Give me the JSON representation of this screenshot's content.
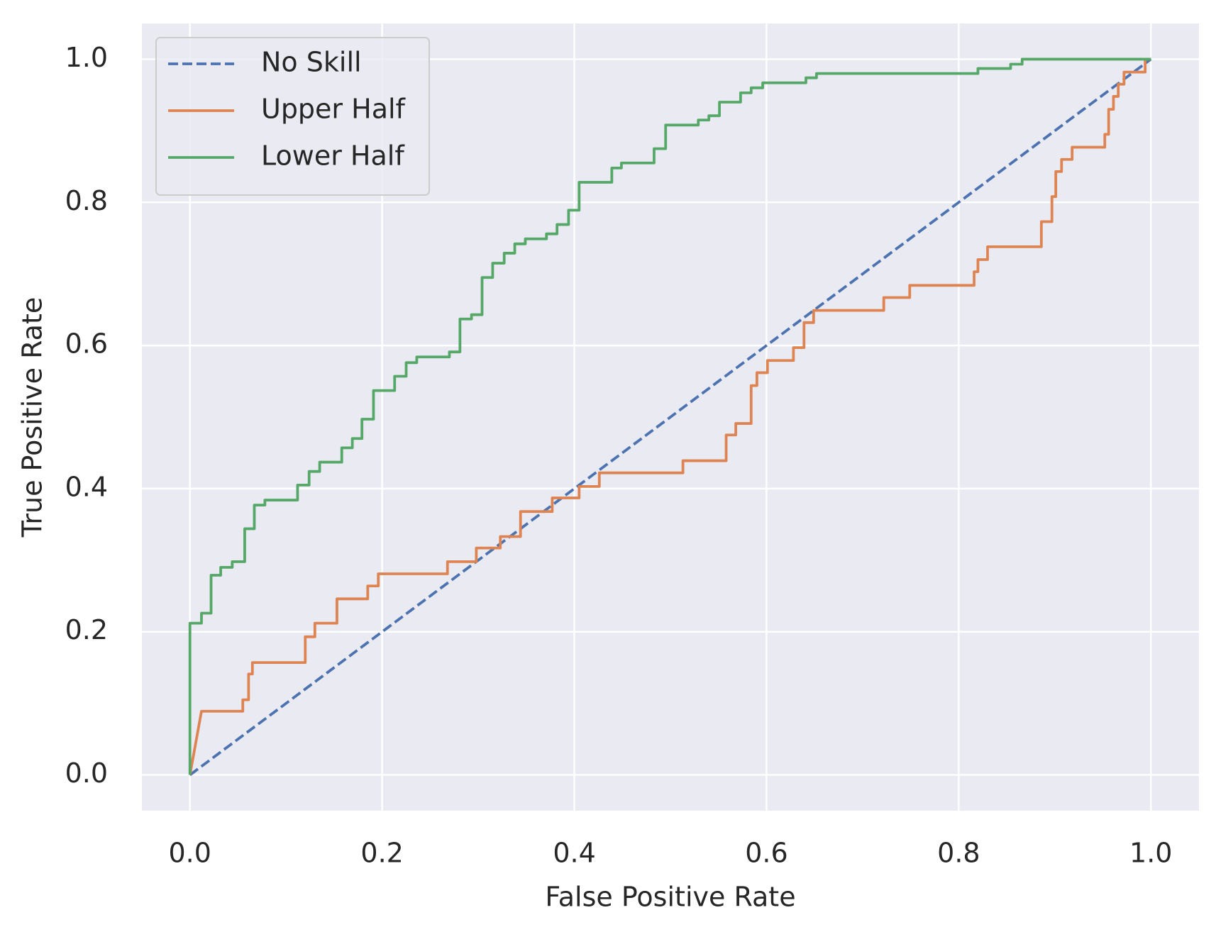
{
  "chart_data": {
    "type": "line",
    "xlabel": "False Positive Rate",
    "ylabel": "True Positive Rate",
    "xlim": [
      -0.05,
      1.05
    ],
    "ylim": [
      -0.05,
      1.05
    ],
    "xticks": [
      {
        "value": 0,
        "label": "0.0"
      },
      0.2,
      0.4,
      0.6,
      0.8,
      {
        "value": 1,
        "label": "1.0"
      }
    ],
    "yticks": [
      {
        "value": 0,
        "label": "0.0"
      },
      0.2,
      0.4,
      0.6,
      0.8,
      {
        "value": 1,
        "label": "1.0"
      }
    ],
    "grid": true,
    "legend": "upper-left",
    "background": "#eaeaf2",
    "series": [
      {
        "name": "No Skill",
        "color": "#4c72b0",
        "linestyle": "dashed",
        "x": [
          0,
          1
        ],
        "values": [
          0,
          1
        ]
      },
      {
        "name": "Upper Half",
        "color": "#dd8452",
        "linestyle": "solid",
        "x": [
          0,
          0.012,
          0.055,
          0.055,
          0.061,
          0.061,
          0.065,
          0.065,
          0.12,
          0.12,
          0.13,
          0.13,
          0.153,
          0.153,
          0.185,
          0.185,
          0.196,
          0.196,
          0.268,
          0.268,
          0.298,
          0.298,
          0.323,
          0.323,
          0.344,
          0.344,
          0.377,
          0.377,
          0.405,
          0.405,
          0.426,
          0.426,
          0.513,
          0.513,
          0.558,
          0.558,
          0.568,
          0.568,
          0.584,
          0.584,
          0.59,
          0.59,
          0.601,
          0.601,
          0.628,
          0.628,
          0.639,
          0.639,
          0.649,
          0.649,
          0.722,
          0.722,
          0.749,
          0.749,
          0.816,
          0.816,
          0.82,
          0.82,
          0.83,
          0.83,
          0.886,
          0.886,
          0.897,
          0.897,
          0.901,
          0.901,
          0.907,
          0.907,
          0.918,
          0.918,
          0.952,
          0.952,
          0.956,
          0.956,
          0.961,
          0.961,
          0.966,
          0.966,
          0.972,
          0.972,
          0.994,
          0.994,
          1.0
        ],
        "values": [
          0,
          0.089,
          0.089,
          0.105,
          0.105,
          0.141,
          0.141,
          0.157,
          0.157,
          0.193,
          0.193,
          0.212,
          0.212,
          0.246,
          0.246,
          0.264,
          0.264,
          0.281,
          0.281,
          0.298,
          0.298,
          0.317,
          0.317,
          0.333,
          0.333,
          0.368,
          0.368,
          0.387,
          0.387,
          0.403,
          0.403,
          0.422,
          0.422,
          0.439,
          0.439,
          0.475,
          0.475,
          0.491,
          0.491,
          0.544,
          0.544,
          0.562,
          0.562,
          0.579,
          0.579,
          0.597,
          0.597,
          0.632,
          0.632,
          0.649,
          0.649,
          0.667,
          0.667,
          0.684,
          0.684,
          0.703,
          0.703,
          0.72,
          0.72,
          0.738,
          0.738,
          0.773,
          0.773,
          0.808,
          0.808,
          0.843,
          0.843,
          0.86,
          0.86,
          0.877,
          0.877,
          0.895,
          0.895,
          0.93,
          0.93,
          0.948,
          0.948,
          0.965,
          0.965,
          0.982,
          0.982,
          1.0,
          1.0
        ]
      },
      {
        "name": "Lower Half",
        "color": "#55a868",
        "linestyle": "solid",
        "x": [
          0,
          0,
          0.012,
          0.012,
          0.022,
          0.022,
          0.032,
          0.032,
          0.044,
          0.044,
          0.057,
          0.057,
          0.067,
          0.067,
          0.078,
          0.078,
          0.112,
          0.112,
          0.124,
          0.124,
          0.135,
          0.135,
          0.158,
          0.158,
          0.169,
          0.169,
          0.179,
          0.179,
          0.191,
          0.191,
          0.213,
          0.213,
          0.225,
          0.225,
          0.236,
          0.236,
          0.27,
          0.27,
          0.281,
          0.281,
          0.293,
          0.293,
          0.304,
          0.304,
          0.315,
          0.315,
          0.327,
          0.327,
          0.338,
          0.338,
          0.349,
          0.349,
          0.371,
          0.371,
          0.382,
          0.382,
          0.394,
          0.394,
          0.405,
          0.405,
          0.439,
          0.439,
          0.449,
          0.449,
          0.483,
          0.483,
          0.495,
          0.495,
          0.529,
          0.529,
          0.54,
          0.54,
          0.551,
          0.551,
          0.573,
          0.573,
          0.584,
          0.584,
          0.596,
          0.596,
          0.641,
          0.641,
          0.652,
          0.652,
          0.82,
          0.82,
          0.854,
          0.854,
          0.866,
          0.866,
          1.0
        ],
        "values": [
          0,
          0.212,
          0.212,
          0.226,
          0.226,
          0.279,
          0.279,
          0.29,
          0.29,
          0.298,
          0.298,
          0.344,
          0.344,
          0.377,
          0.377,
          0.384,
          0.384,
          0.405,
          0.405,
          0.424,
          0.424,
          0.437,
          0.437,
          0.457,
          0.457,
          0.47,
          0.47,
          0.497,
          0.497,
          0.537,
          0.537,
          0.557,
          0.557,
          0.576,
          0.576,
          0.584,
          0.584,
          0.591,
          0.591,
          0.637,
          0.637,
          0.643,
          0.643,
          0.695,
          0.695,
          0.715,
          0.715,
          0.729,
          0.729,
          0.742,
          0.742,
          0.749,
          0.749,
          0.756,
          0.756,
          0.769,
          0.769,
          0.789,
          0.789,
          0.828,
          0.828,
          0.848,
          0.848,
          0.855,
          0.855,
          0.875,
          0.875,
          0.908,
          0.908,
          0.915,
          0.915,
          0.921,
          0.921,
          0.94,
          0.94,
          0.953,
          0.953,
          0.96,
          0.96,
          0.967,
          0.967,
          0.974,
          0.974,
          0.98,
          0.98,
          0.987,
          0.987,
          0.993,
          0.993,
          1.0,
          1.0
        ]
      }
    ]
  }
}
